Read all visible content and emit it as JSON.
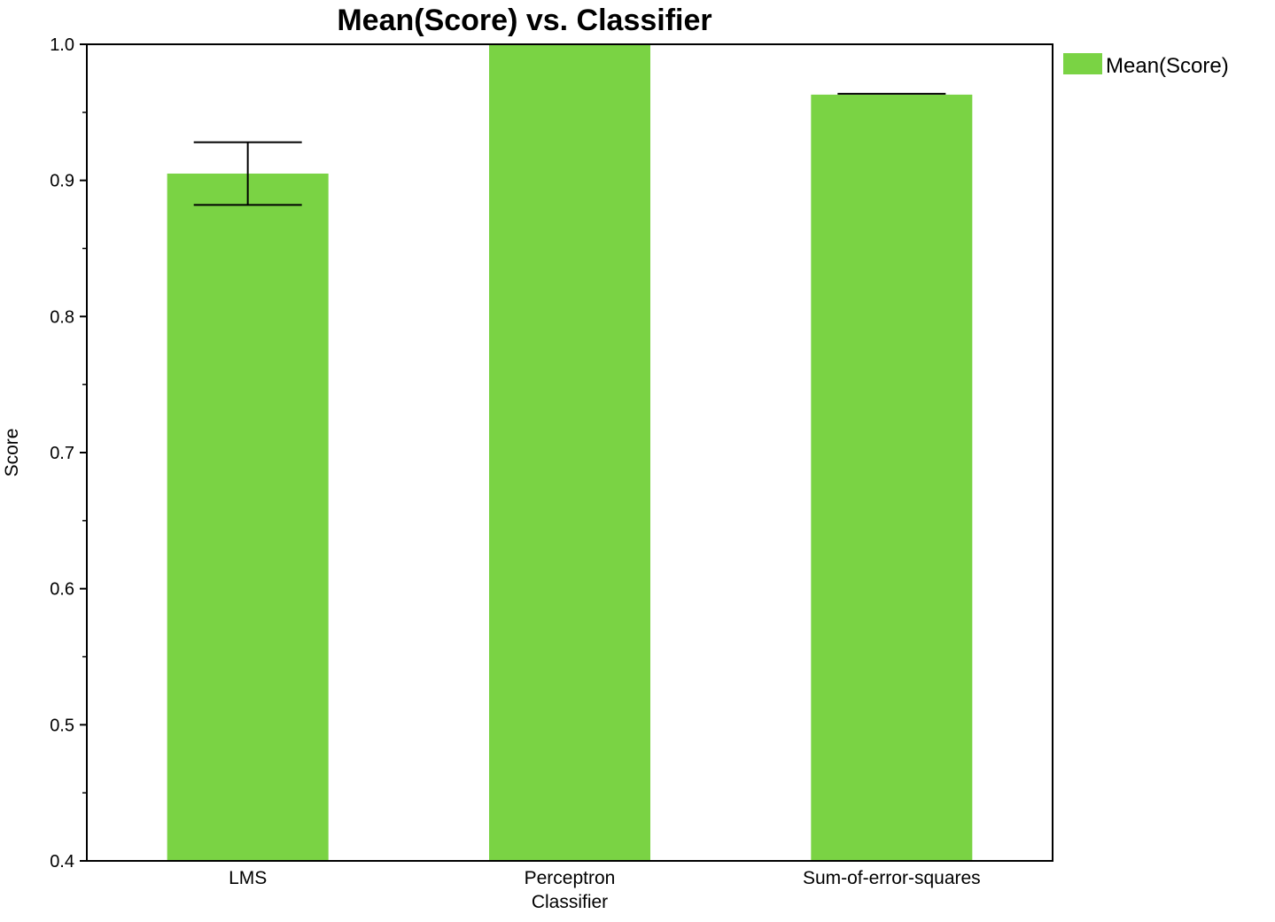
{
  "chart_data": {
    "type": "bar",
    "title": "Mean(Score) vs. Classifier",
    "xlabel": "",
    "ylabel": "Score",
    "categories": [
      [
        "LMS"
      ],
      [
        "Perceptron",
        "Classifier"
      ],
      [
        "Sum-of-error-squares"
      ]
    ],
    "series": [
      {
        "name": "Mean(Score)",
        "color": "#7ad344",
        "values": [
          0.905,
          1.0,
          0.963
        ],
        "error_low": [
          0.882,
          1.0,
          0.963
        ],
        "error_high": [
          0.928,
          1.0,
          0.963
        ]
      }
    ],
    "ylim": [
      0.4,
      1.0
    ],
    "yticks": [
      0.4,
      0.5,
      0.6,
      0.7,
      0.8,
      0.9,
      1.0
    ],
    "ytick_labels": [
      "0.4",
      "0.5",
      "0.6",
      "0.7",
      "0.8",
      "0.9",
      "1.0"
    ],
    "grid": false,
    "legend": {
      "position": "right-top",
      "entries": [
        "Mean(Score)"
      ]
    }
  }
}
